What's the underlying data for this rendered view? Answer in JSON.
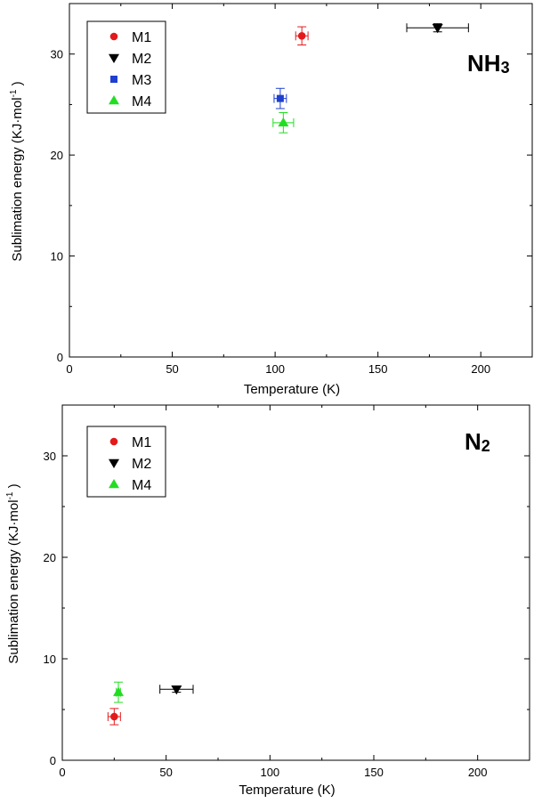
{
  "colors": {
    "M1": "#e31a1c",
    "M2": "#000000",
    "M3": "#1f3fcf",
    "M4": "#22dd22"
  },
  "chart_data": [
    {
      "type": "scatter",
      "title": "",
      "annotation": {
        "main": "NH",
        "subscript": "3"
      },
      "xlabel": "Temperature (K)",
      "ylabel": "Sublimation energy (KJ·mol",
      "ylabel_sup": "-1",
      "ylabel_end": " )",
      "xlim": [
        0,
        225
      ],
      "ylim": [
        0,
        35
      ],
      "xticks": [
        0,
        50,
        100,
        150,
        200
      ],
      "yticks": [
        0,
        10,
        20,
        30
      ],
      "grid": false,
      "legend_position": "top-left",
      "series": [
        {
          "name": "M1",
          "marker": "circle",
          "points": [
            {
              "x": 113,
              "y": 31.8,
              "xerr": 3,
              "yerr": 0.9
            }
          ]
        },
        {
          "name": "M2",
          "marker": "triangle-down",
          "points": [
            {
              "x": 179,
              "y": 32.6,
              "xerr": 15,
              "yerr": 0.4
            }
          ]
        },
        {
          "name": "M3",
          "marker": "square",
          "points": [
            {
              "x": 102.5,
              "y": 25.6,
              "xerr": 3,
              "yerr": 1
            }
          ]
        },
        {
          "name": "M4",
          "marker": "triangle-up",
          "points": [
            {
              "x": 104,
              "y": 23.2,
              "xerr": 5,
              "yerr": 1.0
            }
          ]
        }
      ]
    },
    {
      "type": "scatter",
      "title": "",
      "annotation": {
        "main": "N",
        "subscript": "2"
      },
      "xlabel": "Temperature (K)",
      "ylabel": "Sublimation energy (KJ·mol",
      "ylabel_sup": "-1",
      "ylabel_end": " )",
      "xlim": [
        0,
        225
      ],
      "ylim": [
        0,
        35
      ],
      "xticks": [
        0,
        50,
        100,
        150,
        200
      ],
      "yticks": [
        0,
        10,
        20,
        30
      ],
      "grid": false,
      "legend_position": "top-left",
      "series": [
        {
          "name": "M1",
          "marker": "circle",
          "points": [
            {
              "x": 25,
              "y": 4.3,
              "xerr": 3,
              "yerr": 0.8
            }
          ]
        },
        {
          "name": "M2",
          "marker": "triangle-down",
          "points": [
            {
              "x": 55,
              "y": 7.0,
              "xerr": 8,
              "yerr": 0.3
            }
          ]
        },
        {
          "name": "M4",
          "marker": "triangle-up",
          "points": [
            {
              "x": 27,
              "y": 6.7,
              "xerr": 1,
              "yerr": 1.0
            }
          ]
        }
      ]
    }
  ]
}
